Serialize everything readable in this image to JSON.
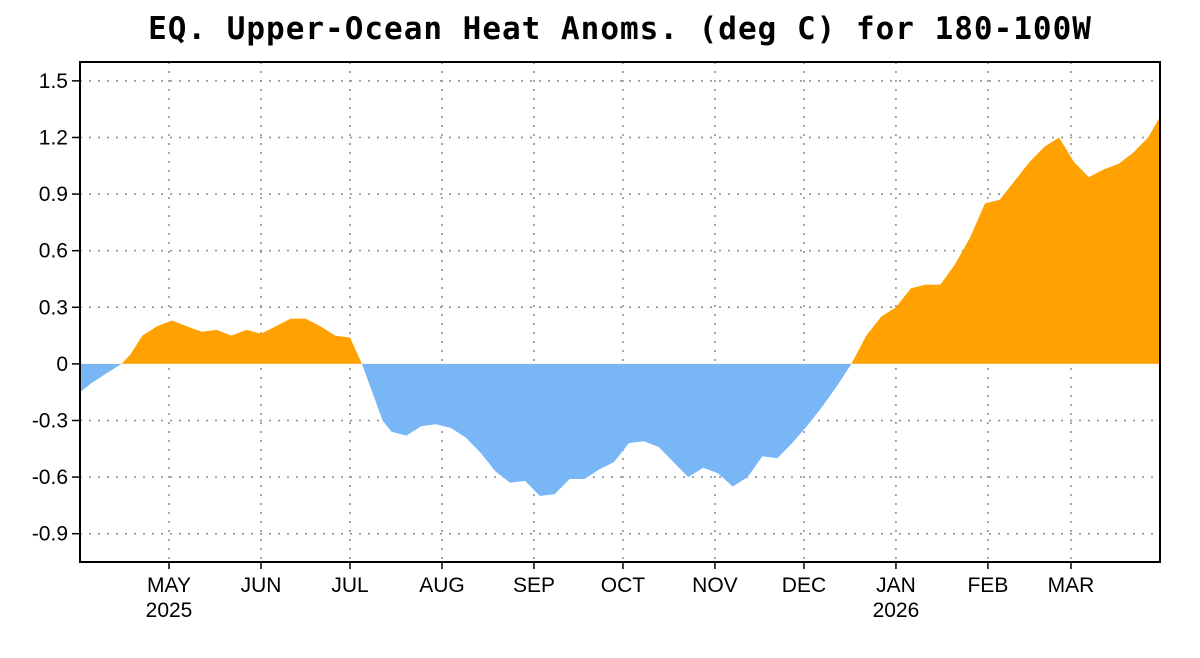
{
  "chart_data": {
    "type": "area",
    "title": "EQ. Upper-Ocean Heat Anoms. (deg C) for 180-100W",
    "xlabel": "",
    "ylabel": "",
    "ylim": [
      -1.05,
      1.6
    ],
    "yticks": [
      1.5,
      1.2,
      0.9,
      0.6,
      0.3,
      0,
      -0.3,
      -0.6,
      -0.9
    ],
    "ytick_labels": [
      "1.5",
      "1.2",
      "0.9",
      "0.6",
      "0.3",
      "0",
      "-0.3",
      "-0.6",
      "-0.9"
    ],
    "xlim": [
      "2025-04-01",
      "2026-03-31"
    ],
    "xticks": [
      {
        "date": "2025-05-01",
        "label": "MAY",
        "year": "2025"
      },
      {
        "date": "2025-06-01",
        "label": "JUN",
        "year": ""
      },
      {
        "date": "2025-07-01",
        "label": "JUL",
        "year": ""
      },
      {
        "date": "2025-08-01",
        "label": "AUG",
        "year": ""
      },
      {
        "date": "2025-09-01",
        "label": "SEP",
        "year": ""
      },
      {
        "date": "2025-10-01",
        "label": "OCT",
        "year": ""
      },
      {
        "date": "2025-11-01",
        "label": "NOV",
        "year": ""
      },
      {
        "date": "2025-12-01",
        "label": "DEC",
        "year": ""
      },
      {
        "date": "2026-01-01",
        "label": "JAN",
        "year": "2026"
      },
      {
        "date": "2026-02-01",
        "label": "FEB",
        "year": ""
      },
      {
        "date": "2026-03-01",
        "label": "MAR",
        "year": ""
      }
    ],
    "grid": true,
    "colors": {
      "positive": "#FFA100",
      "negative": "#78B6F6"
    },
    "series": [
      {
        "x": [
          "2025-04-01",
          "2025-04-05",
          "2025-04-10",
          "2025-04-15",
          "2025-04-18",
          "2025-04-22",
          "2025-04-27",
          "2025-05-02",
          "2025-05-07",
          "2025-05-12",
          "2025-05-17",
          "2025-05-22",
          "2025-05-27",
          "2025-06-01",
          "2025-06-06",
          "2025-06-11",
          "2025-06-16",
          "2025-06-21",
          "2025-06-26",
          "2025-07-01",
          "2025-07-05",
          "2025-07-09",
          "2025-07-12",
          "2025-07-15",
          "2025-07-20",
          "2025-07-25",
          "2025-07-30",
          "2025-08-04",
          "2025-08-09",
          "2025-08-14",
          "2025-08-19",
          "2025-08-24",
          "2025-08-29",
          "2025-09-03",
          "2025-09-08",
          "2025-09-13",
          "2025-09-18",
          "2025-09-23",
          "2025-09-28",
          "2025-10-03",
          "2025-10-08",
          "2025-10-13",
          "2025-10-18",
          "2025-10-23",
          "2025-10-28",
          "2025-11-02",
          "2025-11-07",
          "2025-11-12",
          "2025-11-17",
          "2025-11-22",
          "2025-11-27",
          "2025-12-02",
          "2025-12-07",
          "2025-12-12",
          "2025-12-17",
          "2025-12-22",
          "2025-12-27",
          "2026-01-01",
          "2026-01-06",
          "2026-01-11",
          "2026-01-16",
          "2026-01-21",
          "2026-01-26",
          "2026-01-31",
          "2026-02-05",
          "2026-02-10",
          "2026-02-15",
          "2026-02-20",
          "2026-02-25",
          "2026-03-02",
          "2026-03-07",
          "2026-03-12",
          "2026-03-17",
          "2026-03-22",
          "2026-03-27",
          "2026-03-31"
        ],
        "y": [
          -0.15,
          -0.1,
          -0.05,
          0.0,
          0.05,
          0.15,
          0.2,
          0.23,
          0.2,
          0.17,
          0.18,
          0.15,
          0.18,
          0.16,
          0.2,
          0.24,
          0.24,
          0.2,
          0.15,
          0.14,
          0.0,
          -0.17,
          -0.3,
          -0.36,
          -0.38,
          -0.33,
          -0.32,
          -0.34,
          -0.39,
          -0.47,
          -0.57,
          -0.63,
          -0.62,
          -0.7,
          -0.69,
          -0.61,
          -0.61,
          -0.56,
          -0.52,
          -0.42,
          -0.41,
          -0.44,
          -0.52,
          -0.6,
          -0.55,
          -0.58,
          -0.65,
          -0.6,
          -0.49,
          -0.5,
          -0.42,
          -0.33,
          -0.23,
          -0.12,
          0.0,
          0.15,
          0.25,
          0.3,
          0.4,
          0.42,
          0.42,
          0.53,
          0.67,
          0.85,
          0.87,
          0.97,
          1.07,
          1.15,
          1.2,
          1.07,
          0.99,
          1.03,
          1.06,
          1.12,
          1.2,
          1.31
        ]
      }
    ]
  }
}
